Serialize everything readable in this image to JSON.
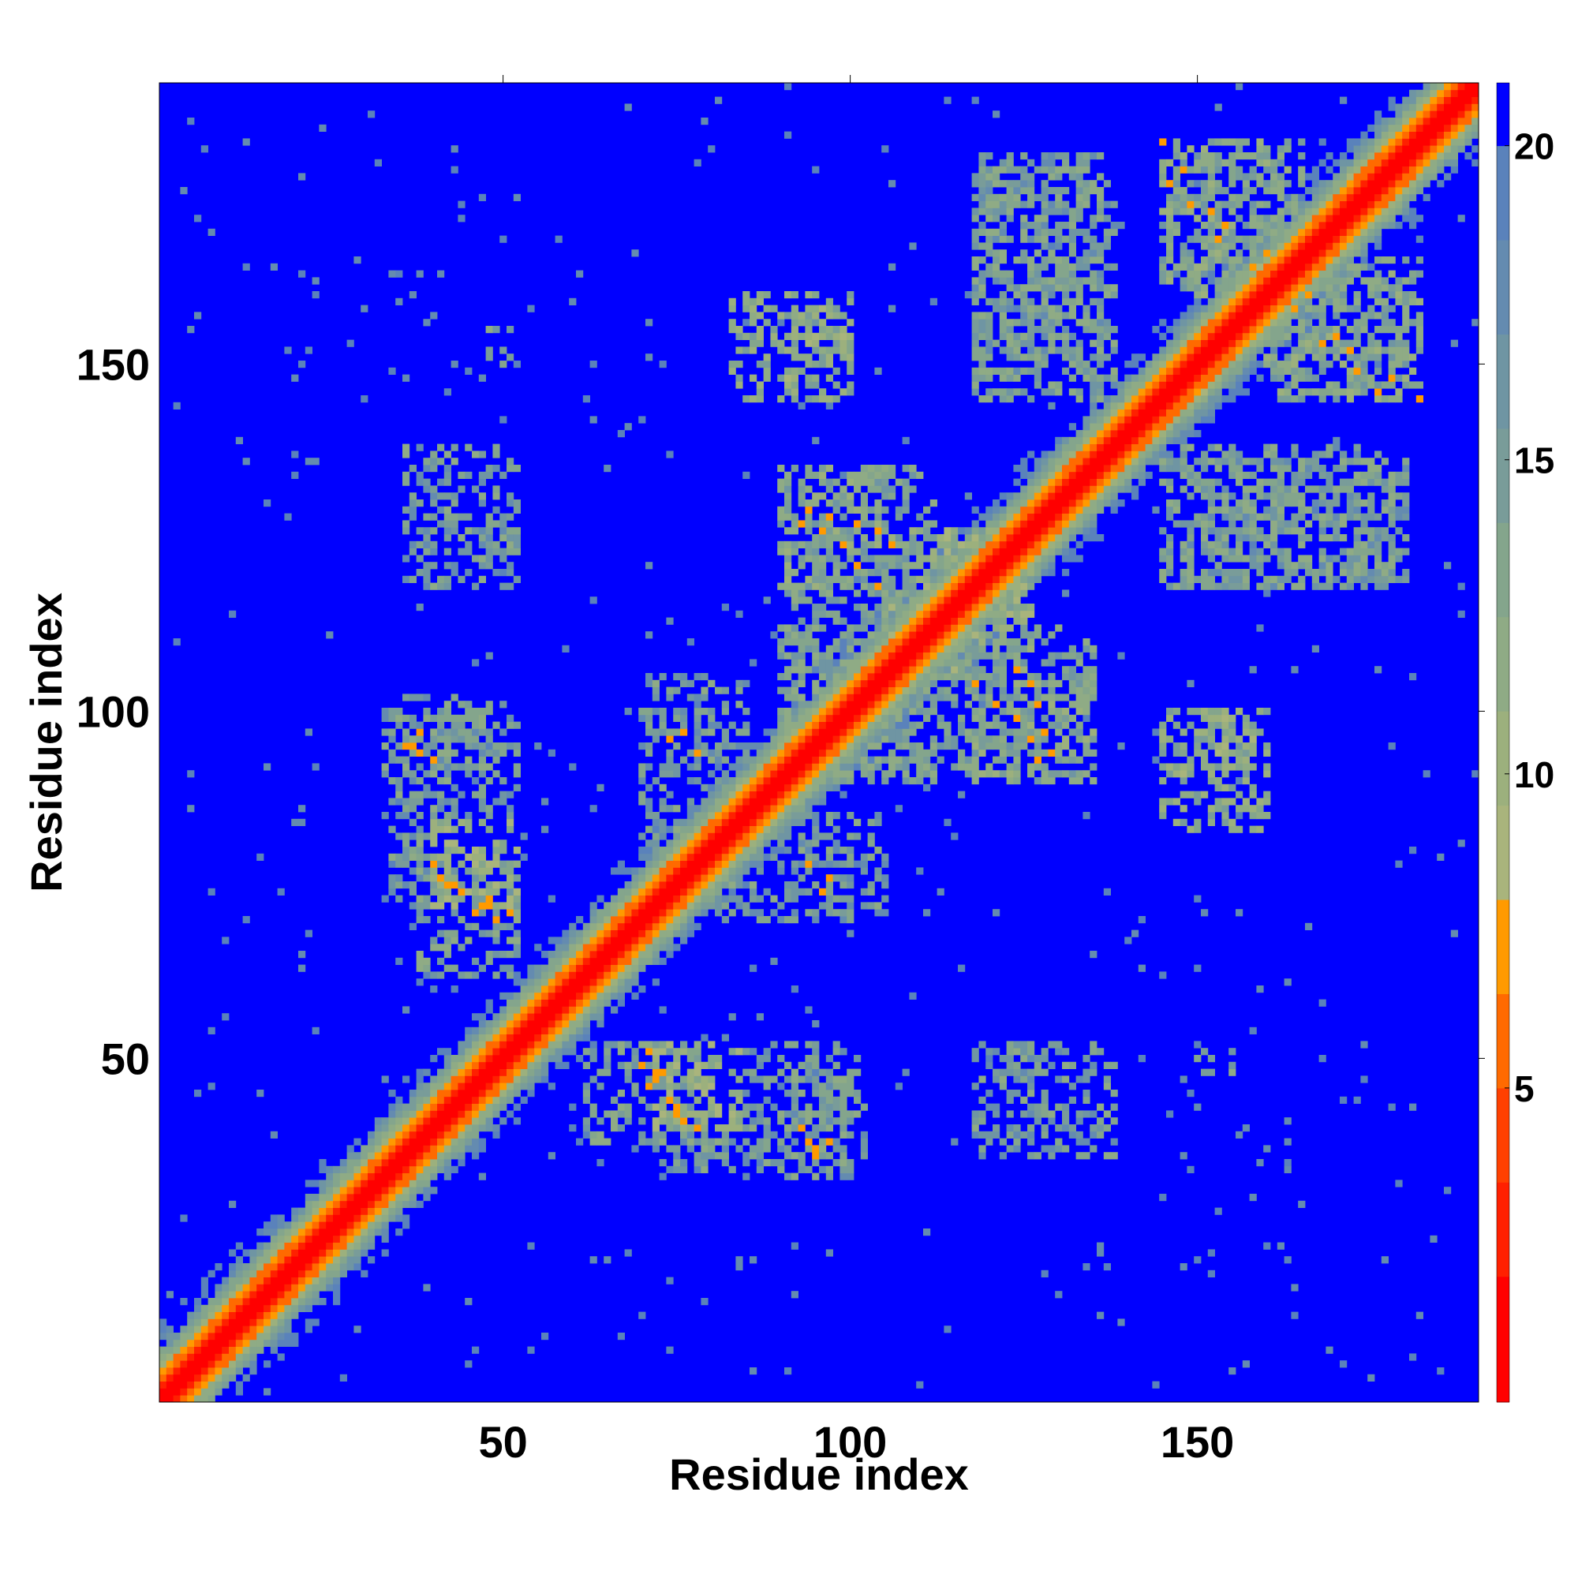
{
  "chart_data": {
    "type": "heatmap",
    "xlabel": "Residue index",
    "ylabel": "Residue index",
    "n_residues": 190,
    "xlim": [
      1,
      190
    ],
    "ylim": [
      1,
      190
    ],
    "x_ticks": [
      50,
      100,
      150
    ],
    "y_ticks": [
      50,
      100,
      150
    ],
    "colorbar": {
      "min": 0,
      "max": 21,
      "ticks": [
        5,
        10,
        15,
        20
      ],
      "levels": [
        {
          "lo": 0,
          "hi": 2.0,
          "color": "#ff0000"
        },
        {
          "lo": 2.0,
          "hi": 3.5,
          "color": "#ff2000"
        },
        {
          "lo": 3.5,
          "hi": 5.0,
          "color": "#ff4000"
        },
        {
          "lo": 5.0,
          "hi": 6.5,
          "color": "#ff6a00"
        },
        {
          "lo": 6.5,
          "hi": 8.0,
          "color": "#ff9a00"
        },
        {
          "lo": 8.0,
          "hi": 9.5,
          "color": "#a9b47c"
        },
        {
          "lo": 9.5,
          "hi": 11.0,
          "color": "#9cb07d"
        },
        {
          "lo": 11.0,
          "hi": 12.5,
          "color": "#8fab85"
        },
        {
          "lo": 12.5,
          "hi": 14.0,
          "color": "#84a58c"
        },
        {
          "lo": 14.0,
          "hi": 15.5,
          "color": "#799c99"
        },
        {
          "lo": 15.5,
          "hi": 17.0,
          "color": "#6f95a3"
        },
        {
          "lo": 17.0,
          "hi": 18.5,
          "color": "#648bb0"
        },
        {
          "lo": 18.5,
          "hi": 20.0,
          "color": "#5a82bb"
        },
        {
          "lo": 20.0,
          "hi": 21.0,
          "color": "#0000ff"
        }
      ]
    },
    "description_of_values": "Pairwise residue distance map; value is distance d(i,j), symmetric in i and j, minimum along the diagonal and saturating (blue) beyond 20.",
    "diagonal_band": {
      "core_halfwidth_residues": 2,
      "orange_halfwidth_residues": 4,
      "green_halfwidth_residues": 9
    },
    "contact_clusters": [
      {
        "x_range": [
          62,
          80
        ],
        "y_range": [
          38,
          52
        ],
        "value": 14
      },
      {
        "x_range": [
          90,
          100
        ],
        "y_range": [
          33,
          48
        ],
        "value": 15
      },
      {
        "x_range": [
          118,
          138
        ],
        "y_range": [
          36,
          52
        ],
        "value": 15
      },
      {
        "x_range": [
          150,
          155
        ],
        "y_range": [
          48,
          51
        ],
        "value": 14
      },
      {
        "x_range": [
          34,
          52
        ],
        "y_range": [
          72,
          102
        ],
        "value": 15
      },
      {
        "x_range": [
          40,
          52
        ],
        "y_range": [
          72,
          84
        ],
        "value": 11
      },
      {
        "x_range": [
          70,
          85
        ],
        "y_range": [
          80,
          105
        ],
        "value": 15
      },
      {
        "x_range": [
          90,
          112
        ],
        "y_range": [
          90,
          135
        ],
        "value": 14
      },
      {
        "x_range": [
          118,
          135
        ],
        "y_range": [
          91,
          106
        ],
        "value": 13
      },
      {
        "x_range": [
          148,
          158
        ],
        "y_range": [
          91,
          100
        ],
        "value": 12
      },
      {
        "x_range": [
          145,
          178
        ],
        "y_range": [
          118,
          136
        ],
        "value": 14
      },
      {
        "x_range": [
          83,
          100
        ],
        "y_range": [
          145,
          160
        ],
        "value": 13
      },
      {
        "x_range": [
          118,
          138
        ],
        "y_range": [
          148,
          180
        ],
        "value": 15
      },
      {
        "x_range": [
          145,
          166
        ],
        "y_range": [
          160,
          182
        ],
        "value": 13
      },
      {
        "x_range": [
          160,
          180
        ],
        "y_range": [
          145,
          162
        ],
        "value": 14
      },
      {
        "x_range": [
          113,
          126
        ],
        "y_range": [
          105,
          125
        ],
        "value": 12
      }
    ],
    "close_contacts": [
      [
        71,
        51
      ],
      [
        73,
        48
      ],
      [
        74,
        44
      ],
      [
        75,
        43
      ],
      [
        76,
        41
      ],
      [
        78,
        40
      ],
      [
        72,
        47
      ],
      [
        94,
        38
      ],
      [
        95,
        36
      ],
      [
        97,
        38
      ],
      [
        42,
        75
      ],
      [
        44,
        74
      ],
      [
        46,
        71
      ],
      [
        48,
        72
      ],
      [
        49,
        70
      ],
      [
        37,
        95
      ],
      [
        40,
        93
      ],
      [
        74,
        96
      ],
      [
        78,
        94
      ],
      [
        97,
        76
      ],
      [
        93,
        127
      ],
      [
        96,
        126
      ],
      [
        99,
        124
      ],
      [
        101,
        121
      ],
      [
        104,
        118
      ],
      [
        124,
        106
      ],
      [
        126,
        104
      ],
      [
        127,
        101
      ],
      [
        128,
        97
      ],
      [
        129,
        94
      ],
      [
        145,
        182
      ],
      [
        148,
        178
      ],
      [
        152,
        172
      ],
      [
        154,
        170
      ],
      [
        160,
        166
      ],
      [
        164,
        158
      ],
      [
        168,
        153
      ],
      [
        173,
        149
      ],
      [
        176,
        146
      ]
    ]
  }
}
